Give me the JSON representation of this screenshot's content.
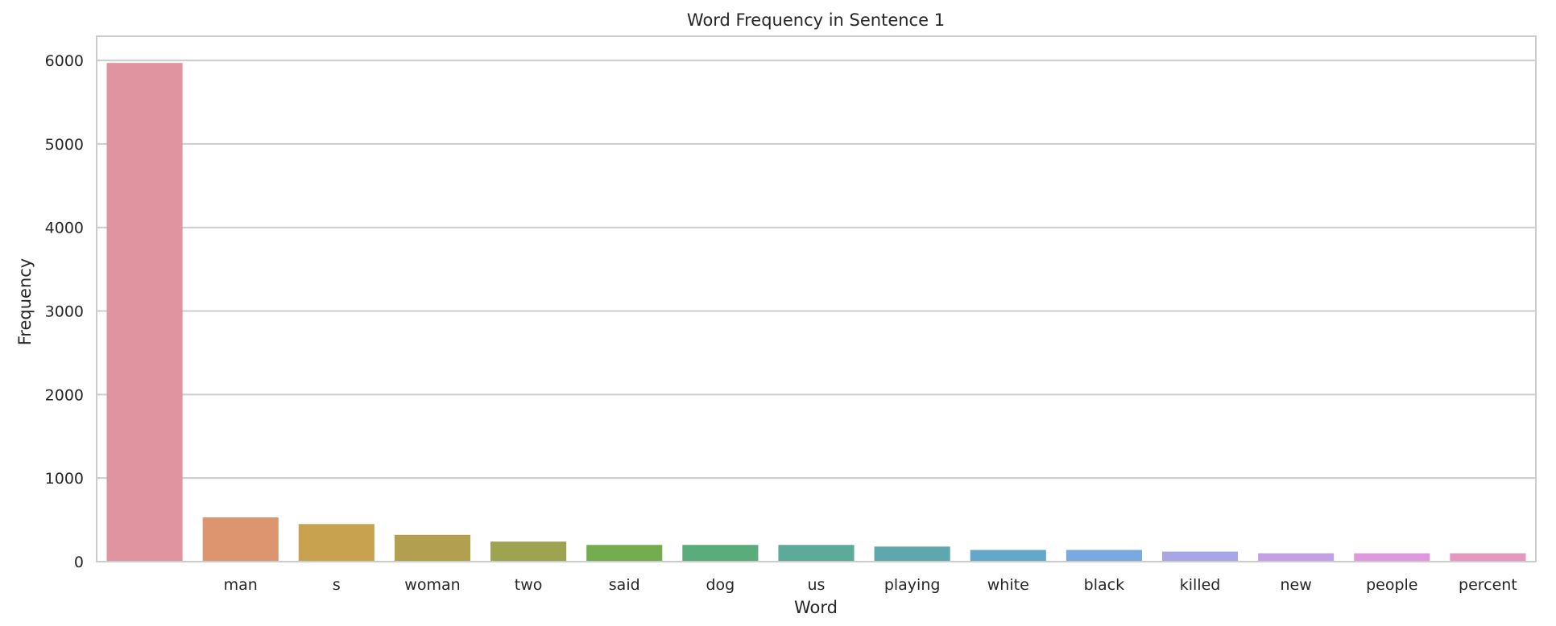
{
  "chart_data": {
    "type": "bar",
    "title": "Word Frequency in Sentence 1",
    "xlabel": "Word",
    "ylabel": "Frequency",
    "categories": [
      "",
      "man",
      "s",
      "woman",
      "two",
      "said",
      "dog",
      "us",
      "playing",
      "white",
      "black",
      "killed",
      "new",
      "people",
      "percent"
    ],
    "values": [
      5970,
      530,
      450,
      320,
      240,
      200,
      200,
      200,
      180,
      140,
      140,
      120,
      100,
      100,
      100
    ],
    "colors": [
      "#e0949f",
      "#dd9570",
      "#c9a24f",
      "#b29f4f",
      "#9da34f",
      "#74ad4f",
      "#5aac7a",
      "#5caa98",
      "#5ea7ad",
      "#63a8c8",
      "#7aa9e0",
      "#a9a6e8",
      "#c59ee8",
      "#df98de",
      "#e497c1"
    ],
    "yticks": [
      0,
      1000,
      2000,
      3000,
      4000,
      5000,
      6000
    ],
    "ylim": [
      0,
      6290
    ],
    "grid": true,
    "style": "seaborn-whitegrid"
  }
}
